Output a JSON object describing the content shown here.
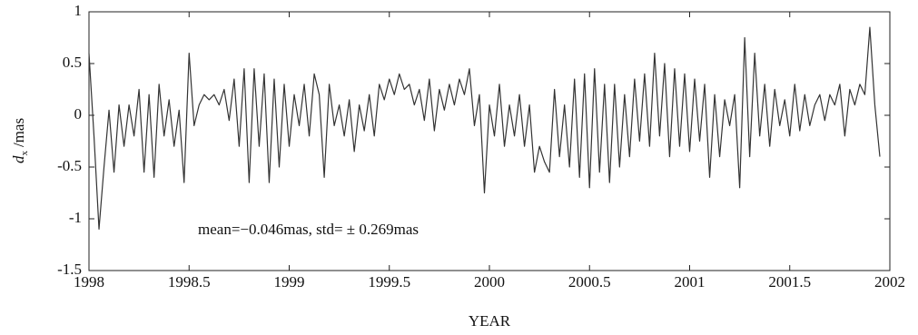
{
  "chart_data": {
    "type": "line",
    "xlabel": "YEAR",
    "ylabel": {
      "main": "d",
      "sub": "x",
      "unit": "/mas"
    },
    "annotation": "mean=−0.046mas,  std= ± 0.269mas",
    "xlim": [
      1998,
      2002
    ],
    "ylim": [
      -1.5,
      1
    ],
    "xticks": [
      1998,
      1998.5,
      1999,
      1999.5,
      2000,
      2000.5,
      2001,
      2001.5,
      2002
    ],
    "yticks": [
      -1.5,
      -1,
      -0.5,
      0,
      0.5,
      1
    ],
    "color": "#333333",
    "x": [
      1998,
      1998.025,
      1998.05,
      1998.075,
      1998.1,
      1998.125,
      1998.15,
      1998.175,
      1998.2,
      1998.225,
      1998.25,
      1998.275,
      1998.3,
      1998.325,
      1998.35,
      1998.375,
      1998.4,
      1998.425,
      1998.45,
      1998.475,
      1998.5,
      1998.525,
      1998.55,
      1998.575,
      1998.6,
      1998.625,
      1998.65,
      1998.675,
      1998.7,
      1998.725,
      1998.75,
      1998.775,
      1998.8,
      1998.825,
      1998.85,
      1998.875,
      1998.9,
      1998.925,
      1998.95,
      1998.975,
      1999,
      1999.025,
      1999.05,
      1999.075,
      1999.1,
      1999.125,
      1999.15,
      1999.175,
      1999.2,
      1999.225,
      1999.25,
      1999.275,
      1999.3,
      1999.325,
      1999.35,
      1999.375,
      1999.4,
      1999.425,
      1999.45,
      1999.475,
      1999.5,
      1999.525,
      1999.55,
      1999.575,
      1999.6,
      1999.625,
      1999.65,
      1999.675,
      1999.7,
      1999.725,
      1999.75,
      1999.775,
      1999.8,
      1999.825,
      1999.85,
      1999.875,
      1999.9,
      1999.925,
      1999.95,
      1999.975,
      2000,
      2000.025,
      2000.05,
      2000.075,
      2000.1,
      2000.125,
      2000.15,
      2000.175,
      2000.2,
      2000.225,
      2000.25,
      2000.275,
      2000.3,
      2000.325,
      2000.35,
      2000.375,
      2000.4,
      2000.425,
      2000.45,
      2000.475,
      2000.5,
      2000.525,
      2000.55,
      2000.575,
      2000.6,
      2000.625,
      2000.65,
      2000.675,
      2000.7,
      2000.725,
      2000.75,
      2000.775,
      2000.8,
      2000.825,
      2000.85,
      2000.875,
      2000.9,
      2000.925,
      2000.95,
      2000.975,
      2001,
      2001.025,
      2001.05,
      2001.075,
      2001.1,
      2001.125,
      2001.15,
      2001.175,
      2001.2,
      2001.225,
      2001.25,
      2001.275,
      2001.3,
      2001.325,
      2001.35,
      2001.375,
      2001.4,
      2001.425,
      2001.45,
      2001.475,
      2001.5,
      2001.525,
      2001.55,
      2001.575,
      2001.6,
      2001.625,
      2001.65,
      2001.675,
      2001.7,
      2001.725,
      2001.75,
      2001.775,
      2001.8,
      2001.825,
      2001.85,
      2001.875,
      2001.9,
      2001.925,
      2001.95
    ],
    "values": [
      0.6,
      -0.2,
      -1.1,
      -0.5,
      0.05,
      -0.55,
      0.1,
      -0.3,
      0.1,
      -0.2,
      0.25,
      -0.55,
      0.2,
      -0.6,
      0.3,
      -0.2,
      0.15,
      -0.3,
      0.05,
      -0.65,
      0.6,
      -0.1,
      0.1,
      0.2,
      0.15,
      0.2,
      0.1,
      0.25,
      -0.05,
      0.35,
      -0.3,
      0.45,
      -0.65,
      0.45,
      -0.3,
      0.4,
      -0.65,
      0.35,
      -0.5,
      0.3,
      -0.3,
      0.2,
      -0.1,
      0.3,
      -0.2,
      0.4,
      0.2,
      -0.6,
      0.3,
      -0.1,
      0.1,
      -0.2,
      0.15,
      -0.35,
      0.1,
      -0.15,
      0.2,
      -0.2,
      0.3,
      0.15,
      0.35,
      0.2,
      0.4,
      0.25,
      0.3,
      0.1,
      0.25,
      -0.05,
      0.35,
      -0.15,
      0.25,
      0.05,
      0.3,
      0.1,
      0.35,
      0.2,
      0.45,
      -0.1,
      0.2,
      -0.75,
      0.1,
      -0.2,
      0.3,
      -0.3,
      0.1,
      -0.2,
      0.2,
      -0.3,
      0.1,
      -0.55,
      -0.3,
      -0.45,
      -0.55,
      0.25,
      -0.4,
      0.1,
      -0.5,
      0.35,
      -0.6,
      0.4,
      -0.7,
      0.45,
      -0.55,
      0.3,
      -0.65,
      0.3,
      -0.5,
      0.2,
      -0.4,
      0.35,
      -0.25,
      0.4,
      -0.3,
      0.6,
      -0.2,
      0.5,
      -0.4,
      0.45,
      -0.3,
      0.4,
      -0.35,
      0.35,
      -0.25,
      0.3,
      -0.6,
      0.2,
      -0.4,
      0.15,
      -0.1,
      0.2,
      -0.7,
      0.75,
      -0.4,
      0.6,
      -0.2,
      0.3,
      -0.3,
      0.25,
      -0.1,
      0.15,
      -0.2,
      0.3,
      -0.15,
      0.2,
      -0.1,
      0.1,
      0.2,
      -0.05,
      0.2,
      0.1,
      0.3,
      -0.2,
      0.25,
      0.1,
      0.3,
      0.2,
      0.85,
      0.1,
      -0.4
    ]
  }
}
